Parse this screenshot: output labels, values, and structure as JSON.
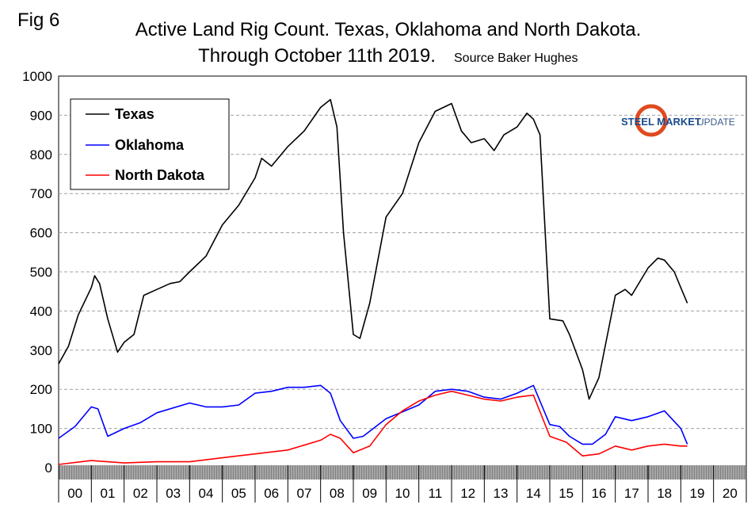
{
  "fig_label": "Fig 6",
  "title_line1": "Active Land Rig Count. Texas, Oklahoma and North Dakota.",
  "title_line2": "Through October 11th 2019.",
  "source_note": "Source Baker Hughes",
  "logo": {
    "text_bold": "STEEL MARKET",
    "text_light": "UPDATE",
    "color_bold": "#1a4b8c",
    "swoosh_color": "#e04a1f"
  },
  "colors": {
    "texas": "#000000",
    "oklahoma": "#0000ff",
    "north_dakota": "#ff0000",
    "grid": "#a0a0a0",
    "axis_band": "#808080"
  },
  "chart_data": {
    "type": "line",
    "title": "Active Land Rig Count. Texas, Oklahoma and North Dakota. Through October 11th 2019.",
    "xlabel": "",
    "ylabel": "",
    "xlim": [
      0,
      21
    ],
    "ylim": [
      0,
      1000
    ],
    "y_ticks": [
      0,
      100,
      200,
      300,
      400,
      500,
      600,
      700,
      800,
      900,
      1000
    ],
    "x_tick_labels": [
      "00",
      "01",
      "02",
      "03",
      "04",
      "05",
      "06",
      "07",
      "08",
      "09",
      "10",
      "11",
      "12",
      "13",
      "14",
      "15",
      "16",
      "17",
      "18",
      "19",
      "20"
    ],
    "legend": [
      "Texas",
      "Oklahoma",
      "North Dakota"
    ],
    "legend_position": "top-left",
    "grid": true,
    "series": [
      {
        "name": "Texas",
        "x": [
          0,
          0.3,
          0.6,
          1,
          1.1,
          1.25,
          1.5,
          1.8,
          2.0,
          2.3,
          2.6,
          3.0,
          3.4,
          3.7,
          4.0,
          4.5,
          5.0,
          5.5,
          6.0,
          6.2,
          6.5,
          7.0,
          7.5,
          8.0,
          8.3,
          8.5,
          8.7,
          9.0,
          9.2,
          9.5,
          10.0,
          10.5,
          11.0,
          11.5,
          12.0,
          12.3,
          12.6,
          13.0,
          13.3,
          13.6,
          14.0,
          14.3,
          14.5,
          14.7,
          15.0,
          15.4,
          15.6,
          16.0,
          16.2,
          16.5,
          17.0,
          17.3,
          17.5,
          18.0,
          18.3,
          18.5,
          18.8,
          19.0,
          19.2
        ],
        "values": [
          265,
          310,
          390,
          460,
          490,
          470,
          380,
          295,
          320,
          340,
          440,
          455,
          470,
          475,
          500,
          540,
          620,
          670,
          740,
          790,
          770,
          820,
          860,
          920,
          940,
          870,
          600,
          340,
          330,
          420,
          640,
          700,
          830,
          910,
          930,
          860,
          830,
          840,
          810,
          850,
          870,
          905,
          890,
          850,
          380,
          375,
          340,
          250,
          175,
          230,
          440,
          455,
          440,
          510,
          535,
          530,
          500,
          460,
          420
        ]
      },
      {
        "name": "Oklahoma",
        "x": [
          0,
          0.5,
          1.0,
          1.2,
          1.5,
          2.0,
          2.5,
          3.0,
          4.0,
          4.5,
          5.0,
          5.5,
          6.0,
          6.5,
          7.0,
          7.5,
          8.0,
          8.3,
          8.6,
          9.0,
          9.3,
          10.0,
          11.0,
          11.5,
          12.0,
          12.5,
          13.0,
          13.5,
          14.0,
          14.5,
          15.0,
          15.3,
          15.6,
          16.0,
          16.3,
          16.7,
          17.0,
          17.5,
          18.0,
          18.5,
          19.0,
          19.2
        ],
        "values": [
          75,
          105,
          155,
          150,
          80,
          100,
          115,
          140,
          165,
          155,
          155,
          160,
          190,
          195,
          205,
          205,
          210,
          190,
          120,
          75,
          80,
          125,
          160,
          195,
          200,
          195,
          180,
          175,
          190,
          210,
          110,
          105,
          80,
          60,
          60,
          85,
          130,
          120,
          130,
          145,
          100,
          60
        ]
      },
      {
        "name": "North Dakota",
        "x": [
          0,
          1,
          2,
          3,
          4,
          5,
          6,
          7,
          8,
          8.3,
          8.6,
          9.0,
          9.5,
          10.0,
          10.5,
          11.0,
          11.5,
          12.0,
          12.5,
          13.0,
          13.5,
          14.0,
          14.5,
          15.0,
          15.5,
          16.0,
          16.5,
          17.0,
          17.5,
          18.0,
          18.5,
          19.0,
          19.2
        ],
        "values": [
          8,
          18,
          12,
          15,
          15,
          25,
          35,
          45,
          70,
          85,
          75,
          38,
          55,
          110,
          145,
          170,
          185,
          195,
          185,
          175,
          170,
          180,
          185,
          80,
          65,
          30,
          35,
          55,
          45,
          55,
          60,
          55,
          55
        ]
      }
    ]
  }
}
